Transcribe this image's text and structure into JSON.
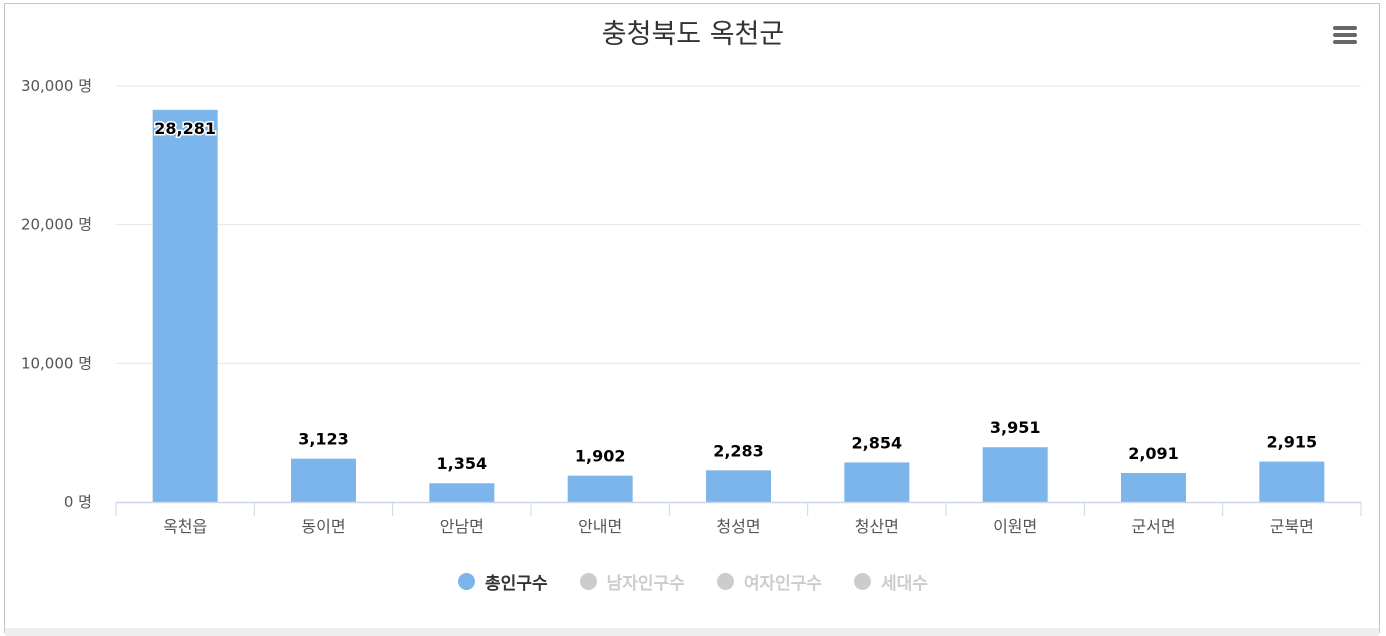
{
  "chart": {
    "title": "충청북도 옥천군",
    "menu_icon": "hamburger-menu-icon",
    "legend": [
      {
        "name": "총인구수",
        "active": true,
        "color": "#7cb5ec"
      },
      {
        "name": "남자인구수",
        "active": false,
        "color": "#cccccc"
      },
      {
        "name": "여자인구수",
        "active": false,
        "color": "#cccccc"
      },
      {
        "name": "세대수",
        "active": false,
        "color": "#cccccc"
      }
    ]
  },
  "chart_data": {
    "type": "bar",
    "title": "충청북도 옥천군",
    "categories": [
      "옥천읍",
      "동이면",
      "안남면",
      "안내면",
      "청성면",
      "청산면",
      "이원면",
      "군서면",
      "군북면"
    ],
    "series": [
      {
        "name": "총인구수",
        "values": [
          28281,
          3123,
          1354,
          1902,
          2283,
          2854,
          3951,
          2091,
          2915
        ],
        "color": "#7cb5ec"
      }
    ],
    "data_labels": [
      "28,281",
      "3,123",
      "1,354",
      "1,902",
      "2,283",
      "2,854",
      "3,951",
      "2,091",
      "2,915"
    ],
    "y_ticks": [
      0,
      10000,
      20000,
      30000
    ],
    "y_tick_labels": [
      "0 명",
      "10,000 명",
      "20,000 명",
      "30,000 명"
    ],
    "ylim": [
      0,
      30000
    ],
    "grid": true,
    "legend_position": "bottom-center"
  }
}
